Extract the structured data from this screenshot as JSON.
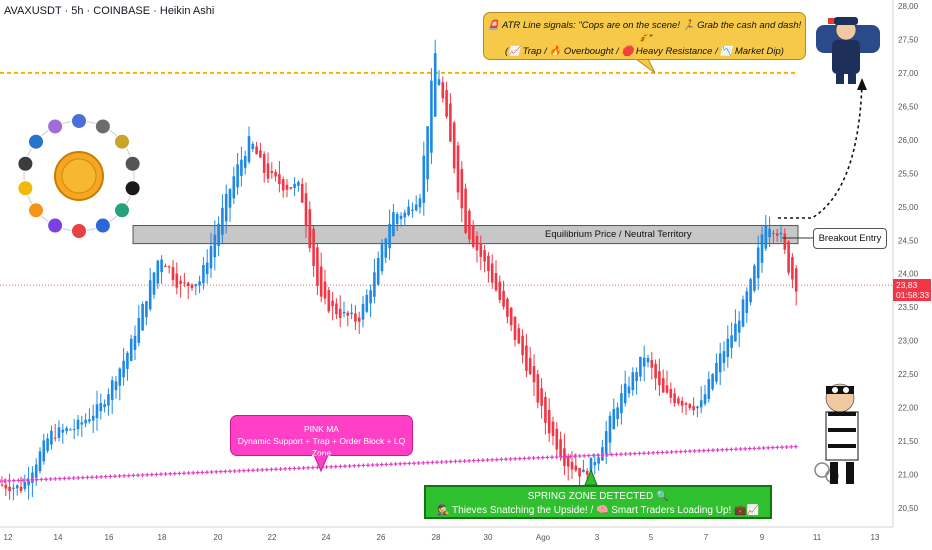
{
  "header": {
    "title": "AVAXUSDT · 5h · COINBASE · Heikin Ashi"
  },
  "callouts": {
    "atr_line1": "🚨 ATR Line signals: \"Cops are on the scene! 🏃 Grab the cash and dash! 💰\"",
    "atr_line2": "(📈 Trap / 🔥 Overbought / 🛑 Heavy Resistance / 📉 Market Dip)",
    "pink_title": "PINK MA",
    "pink_sub": "Dynamic Support + Trap + Order Block + LQ Zone",
    "spring_title": "SPRING ZONE DETECTED 🔍",
    "spring_sub": "🕵️ Thieves Snatching the Upside! / 🧠 Smart Traders Loading Up! 💼📈",
    "breakout": "Breakout Entry",
    "equilibrium": "Equilibrium Price / Neutral Territory"
  },
  "price_tag": {
    "price": "23,83",
    "timer": "01:58:33"
  },
  "colors": {
    "up": "#1e88e5",
    "down": "#f23645",
    "pink_ma": "#e040c8",
    "resistance": "#f5b300",
    "zone": "#c7c7c7"
  },
  "chart_data": {
    "type": "candlestick",
    "style": "Heikin Ashi",
    "ylim": [
      20.3,
      28.1
    ],
    "y_ticks": [
      "20,50",
      "21,00",
      "21,50",
      "22,00",
      "22,50",
      "23,00",
      "23,50",
      "24,00",
      "24,50",
      "25,00",
      "25,50",
      "26,00",
      "26,50",
      "27,00",
      "27,50",
      "28,00"
    ],
    "x_ticks": [
      "12",
      "14",
      "16",
      "18",
      "20",
      "22",
      "24",
      "26",
      "28",
      "30",
      "Ago",
      "3",
      "5",
      "7",
      "9",
      "11",
      "13"
    ],
    "key_points": [
      {
        "date": "12",
        "price": 20.8
      },
      {
        "date": "18",
        "price": 24.3
      },
      {
        "date": "20",
        "price": 26.0
      },
      {
        "date": "24",
        "price": 23.2
      },
      {
        "date": "28",
        "price": 27.4
      },
      {
        "date": "30",
        "price": 23.5
      },
      {
        "date": "Ago 2",
        "price": 21.0
      },
      {
        "date": "Ago 4",
        "price": 22.8
      },
      {
        "date": "Ago 6",
        "price": 22.1
      },
      {
        "date": "Ago 9",
        "price": 24.8
      },
      {
        "date": "Ago 10",
        "price": 23.83
      }
    ],
    "resistance_level": 27.0,
    "equilibrium_zone": [
      24.45,
      24.72
    ],
    "pink_ma": {
      "start": 20.9,
      "end": 21.42
    },
    "current_price": 23.83
  }
}
